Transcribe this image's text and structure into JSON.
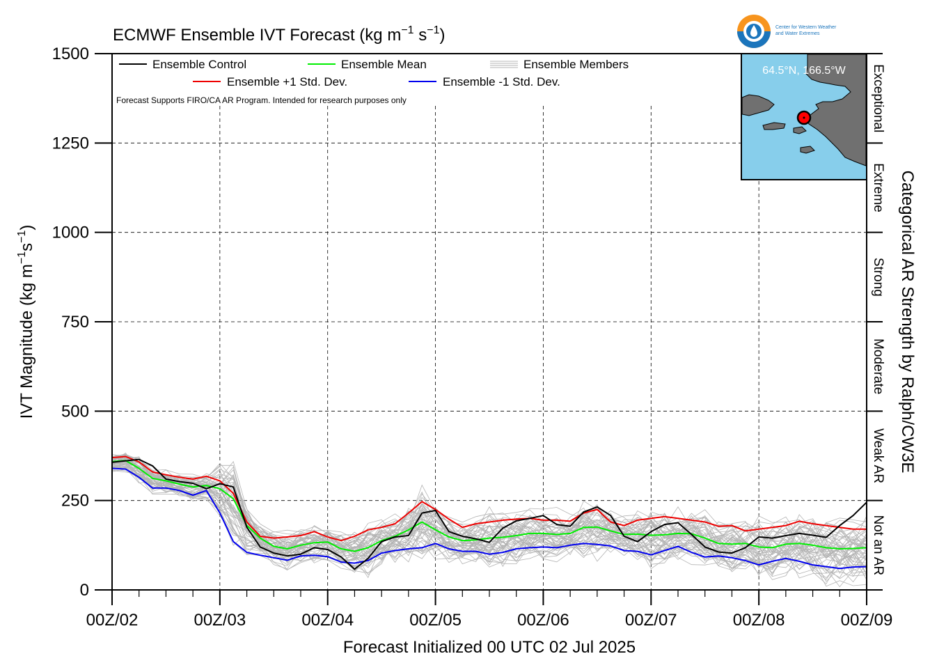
{
  "chart_data": {
    "type": "line",
    "title": "ECMWF Ensemble IVT Forecast (kg m",
    "title_exp1": "−1",
    "title_mid": " s",
    "title_exp2": "−1",
    "title_end": ")",
    "ylabel": "IVT Magnitude (kg m",
    "ylabel_exp1": "−1",
    "ylabel_mid": "s",
    "ylabel_exp2": "−1",
    "ylabel_end": ")",
    "xlabel": "Forecast Initialized 00 UTC 02 Jul 2025",
    "right_axis_label": "Categorical AR Strength by Ralph/CW3E",
    "ylim": [
      0,
      1500
    ],
    "xlim_hours": [
      0,
      168
    ],
    "yticks": [
      "0",
      "250",
      "500",
      "750",
      "1000",
      "1250",
      "1500"
    ],
    "ytick_values": [
      0,
      250,
      500,
      750,
      1000,
      1250,
      1500
    ],
    "xtick_labels": [
      "00Z/02",
      "00Z/03",
      "00Z/04",
      "00Z/05",
      "00Z/06",
      "00Z/07",
      "00Z/08",
      "00Z/09"
    ],
    "xtick_hours": [
      0,
      24,
      48,
      72,
      96,
      120,
      144,
      168
    ],
    "grid": true,
    "legend_placement": "top-left",
    "legend": {
      "control": "Ensemble Control",
      "mean": "Ensemble Mean",
      "members": "Ensemble Members",
      "plus_sd": "Ensemble +1 Std. Dev.",
      "minus_sd": "Ensemble -1 Std. Dev."
    },
    "disclaimer": "Forecast Supports FIRO/CA AR Program. Intended for research purposes only",
    "categories": [
      "Not an AR",
      "Weak AR",
      "Moderate",
      "Strong",
      "Extreme",
      "Exceptional"
    ],
    "category_bounds": [
      0,
      250,
      500,
      750,
      1000,
      1250,
      1500
    ],
    "inset": {
      "location_label": "64.5°N, 166.5°W"
    },
    "logo": {
      "line1": "Center for Western Weather",
      "line2": "and Water Extremes"
    },
    "colors": {
      "control": "#000000",
      "mean": "#00ee00",
      "plus_sd": "#ee0000",
      "minus_sd": "#0000ee",
      "members": "#b4b4b4",
      "ocean": "#87ceeb",
      "land": "#707070",
      "marker": "#ff0000"
    },
    "series": [
      {
        "name": "Ensemble Control",
        "x": [
          0,
          6,
          9,
          12,
          15,
          18,
          21,
          24,
          27,
          30,
          33,
          36,
          39,
          42,
          45,
          48,
          51,
          54,
          57,
          60,
          63,
          66,
          69,
          72,
          75,
          78,
          81,
          84,
          87,
          90,
          93,
          96,
          99,
          102,
          105,
          108,
          111,
          114,
          117,
          120,
          123,
          126,
          129,
          132,
          135,
          138,
          141,
          144,
          147,
          150,
          153,
          156,
          159,
          162,
          165,
          168
        ],
        "values": [
          357,
          365,
          347,
          310,
          303,
          298,
          283,
          297,
          288,
          175,
          120,
          103,
          95,
          100,
          118,
          113,
          92,
          58,
          88,
          135,
          148,
          152,
          215,
          222,
          163,
          150,
          143,
          133,
          173,
          193,
          200,
          208,
          183,
          178,
          218,
          232,
          208,
          150,
          135,
          163,
          183,
          188,
          155,
          120,
          106,
          103,
          118,
          148,
          145,
          152,
          158,
          153,
          147,
          180,
          208,
          245
        ]
      },
      {
        "name": "Ensemble Mean",
        "x": [
          0,
          3,
          6,
          9,
          12,
          15,
          18,
          21,
          24,
          27,
          30,
          33,
          36,
          39,
          42,
          45,
          48,
          51,
          54,
          57,
          60,
          63,
          66,
          69,
          72,
          75,
          78,
          81,
          84,
          87,
          90,
          93,
          96,
          99,
          102,
          105,
          108,
          111,
          114,
          117,
          120,
          123,
          126,
          129,
          132,
          135,
          138,
          141,
          144,
          147,
          150,
          153,
          156,
          159,
          162,
          165,
          168
        ],
        "values": [
          359,
          362,
          340,
          312,
          305,
          296,
          288,
          292,
          283,
          255,
          180,
          145,
          122,
          115,
          125,
          132,
          134,
          115,
          108,
          118,
          138,
          150,
          168,
          190,
          168,
          148,
          138,
          140,
          145,
          147,
          152,
          158,
          158,
          155,
          158,
          175,
          176,
          165,
          155,
          156,
          153,
          154,
          158,
          157,
          145,
          130,
          128,
          130,
          120,
          118,
          128,
          130,
          125,
          118,
          115,
          116,
          118
        ]
      },
      {
        "name": "Ensemble +1 Std. Dev.",
        "x": [
          0,
          3,
          6,
          9,
          12,
          15,
          18,
          21,
          24,
          27,
          30,
          33,
          36,
          39,
          42,
          45,
          48,
          51,
          54,
          57,
          60,
          63,
          66,
          69,
          72,
          75,
          78,
          81,
          84,
          87,
          90,
          93,
          96,
          99,
          102,
          105,
          108,
          111,
          114,
          117,
          120,
          123,
          126,
          129,
          132,
          135,
          138,
          141,
          144,
          147,
          150,
          153,
          156,
          159,
          162,
          165,
          168
        ],
        "values": [
          370,
          373,
          358,
          330,
          322,
          315,
          310,
          318,
          305,
          270,
          190,
          150,
          145,
          148,
          152,
          163,
          148,
          138,
          150,
          168,
          175,
          185,
          215,
          247,
          225,
          198,
          175,
          185,
          190,
          195,
          198,
          200,
          195,
          195,
          192,
          215,
          225,
          190,
          180,
          195,
          200,
          205,
          200,
          195,
          190,
          178,
          180,
          165,
          170,
          175,
          180,
          192,
          185,
          180,
          175,
          170,
          170
        ]
      },
      {
        "name": "Ensemble -1 Std. Dev.",
        "x": [
          0,
          3,
          6,
          9,
          12,
          15,
          18,
          21,
          24,
          27,
          30,
          33,
          36,
          39,
          42,
          45,
          48,
          51,
          54,
          57,
          60,
          63,
          66,
          69,
          72,
          75,
          78,
          81,
          84,
          87,
          90,
          93,
          96,
          99,
          102,
          105,
          108,
          111,
          114,
          117,
          120,
          123,
          126,
          129,
          132,
          135,
          138,
          141,
          144,
          147,
          150,
          153,
          156,
          159,
          162,
          165,
          168
        ],
        "values": [
          340,
          338,
          315,
          285,
          285,
          278,
          265,
          278,
          215,
          135,
          105,
          97,
          90,
          83,
          95,
          97,
          93,
          78,
          75,
          82,
          103,
          110,
          115,
          118,
          130,
          115,
          108,
          108,
          100,
          105,
          115,
          118,
          120,
          118,
          125,
          130,
          127,
          123,
          110,
          108,
          98,
          110,
          122,
          105,
          92,
          95,
          90,
          82,
          70,
          80,
          88,
          80,
          70,
          65,
          60,
          64,
          65
        ]
      }
    ]
  }
}
